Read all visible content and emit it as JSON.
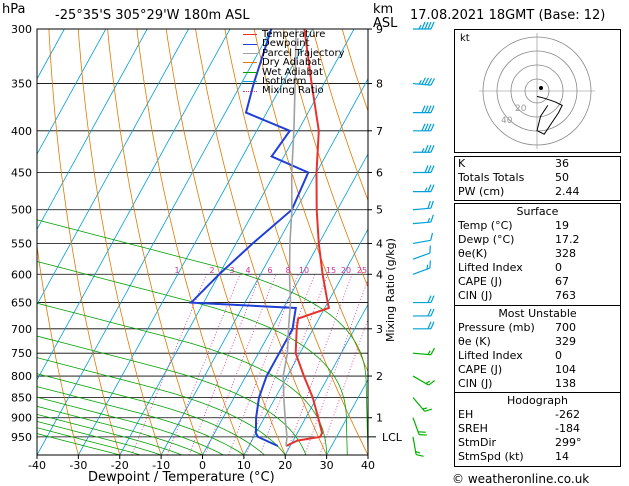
{
  "header": {
    "unit_hpa": "hPa",
    "location": "-25°35'S 305°29'W 180m ASL",
    "unit_km": "km",
    "unit_asl": "ASL",
    "datetime": "17.08.2021 18GMT (Base: 12)"
  },
  "legend": [
    {
      "label": "Temperature",
      "color": "#e8322e"
    },
    {
      "label": "Dewpoint",
      "color": "#1f3fd6"
    },
    {
      "label": "Parcel Trajectory",
      "color": "#a0a0a0"
    },
    {
      "label": "Dry Adiabat",
      "color": "#e07a00"
    },
    {
      "label": "Wet Adiabat",
      "color": "#00a000"
    },
    {
      "label": "Isotherm",
      "color": "#00a0d8"
    },
    {
      "label": "Mixing Ratio",
      "color": "#d0309a"
    }
  ],
  "colors": {
    "temperature": "#e8322e",
    "dewpoint": "#1f3fd6",
    "parcel": "#a0a0a0",
    "dry_adiabat": "#e07a00",
    "wet_adiabat": "#00a000",
    "isotherm": "#00a0d8",
    "mixing_ratio": "#d0309a",
    "wind_barb_upper": "#00a0d8",
    "wind_barb_lower": "#00b000"
  },
  "chart_data": {
    "type": "line",
    "xlabel": "Dewpoint / Temperature (°C)",
    "ylabel": "hPa",
    "right_axis_label": "Mixing Ratio (g/kg)",
    "xlim": [
      -40,
      40
    ],
    "ylim": [
      300,
      1000
    ],
    "y_scale": "log (skew-T)",
    "x_ticks": [
      -40,
      -30,
      -20,
      -10,
      0,
      10,
      20,
      30,
      40
    ],
    "pressure_ticks": [
      300,
      350,
      400,
      450,
      500,
      550,
      600,
      650,
      700,
      750,
      800,
      850,
      900,
      950
    ],
    "km_ticks": [
      {
        "p": 300,
        "label": "9"
      },
      {
        "p": 350,
        "label": "8"
      },
      {
        "p": 400,
        "label": "7"
      },
      {
        "p": 450,
        "label": "6"
      },
      {
        "p": 500,
        "label": "5"
      },
      {
        "p": 550,
        "label": "4"
      },
      {
        "p": 600,
        "label": "4"
      },
      {
        "p": 700,
        "label": "3"
      },
      {
        "p": 800,
        "label": "2"
      },
      {
        "p": 900,
        "label": "1"
      }
    ],
    "lcl_label": "LCL",
    "lcl_pressure": 950,
    "mixing_ratio_labels": [
      "1",
      "2",
      "3",
      "4",
      "6",
      "8",
      "10",
      "15",
      "20",
      "25"
    ],
    "series": [
      {
        "name": "Temperature",
        "points": [
          [
            975,
            19
          ],
          [
            960,
            21
          ],
          [
            950,
            26
          ],
          [
            940,
            26
          ],
          [
            900,
            23
          ],
          [
            850,
            19
          ],
          [
            800,
            14
          ],
          [
            750,
            9
          ],
          [
            700,
            6
          ],
          [
            680,
            5
          ],
          [
            660,
            11
          ],
          [
            650,
            10
          ],
          [
            600,
            5
          ],
          [
            550,
            0
          ],
          [
            500,
            -5
          ],
          [
            450,
            -10
          ],
          [
            400,
            -15
          ],
          [
            350,
            -23
          ],
          [
            300,
            -32
          ]
        ]
      },
      {
        "name": "Dewpoint",
        "points": [
          [
            975,
            17
          ],
          [
            950,
            11
          ],
          [
            940,
            10
          ],
          [
            900,
            8
          ],
          [
            850,
            6
          ],
          [
            800,
            5
          ],
          [
            750,
            5
          ],
          [
            700,
            5
          ],
          [
            680,
            4
          ],
          [
            660,
            3
          ],
          [
            650,
            -23
          ],
          [
            600,
            -20
          ],
          [
            550,
            -16
          ],
          [
            500,
            -11
          ],
          [
            450,
            -12
          ],
          [
            430,
            -23
          ],
          [
            400,
            -22
          ],
          [
            380,
            -35
          ],
          [
            350,
            -37
          ],
          [
            300,
            -40
          ]
        ]
      },
      {
        "name": "Parcel Trajectory",
        "points": [
          [
            975,
            19
          ],
          [
            950,
            18
          ],
          [
            900,
            15
          ],
          [
            850,
            12
          ],
          [
            800,
            9
          ],
          [
            750,
            7
          ],
          [
            700,
            4
          ],
          [
            650,
            1
          ],
          [
            600,
            -3
          ],
          [
            550,
            -7
          ],
          [
            500,
            -11
          ],
          [
            450,
            -16
          ],
          [
            400,
            -21
          ],
          [
            350,
            -27
          ],
          [
            300,
            -34
          ]
        ]
      }
    ],
    "wind_barbs": [
      {
        "p": 300,
        "dir": 270,
        "speed": 45
      },
      {
        "p": 350,
        "dir": 275,
        "speed": 45
      },
      {
        "p": 380,
        "dir": 270,
        "speed": 40
      },
      {
        "p": 400,
        "dir": 270,
        "speed": 40
      },
      {
        "p": 425,
        "dir": 270,
        "speed": 35
      },
      {
        "p": 450,
        "dir": 270,
        "speed": 30
      },
      {
        "p": 475,
        "dir": 270,
        "speed": 25
      },
      {
        "p": 500,
        "dir": 265,
        "speed": 20
      },
      {
        "p": 520,
        "dir": 265,
        "speed": 15
      },
      {
        "p": 550,
        "dir": 260,
        "speed": 10
      },
      {
        "p": 575,
        "dir": 250,
        "speed": 10
      },
      {
        "p": 600,
        "dir": 250,
        "speed": 15
      },
      {
        "p": 650,
        "dir": 270,
        "speed": 20
      },
      {
        "p": 675,
        "dir": 270,
        "speed": 20
      },
      {
        "p": 700,
        "dir": 270,
        "speed": 20
      },
      {
        "p": 750,
        "dir": 275,
        "speed": 15
      },
      {
        "p": 800,
        "dir": 300,
        "speed": 15
      },
      {
        "p": 850,
        "dir": 320,
        "speed": 15
      },
      {
        "p": 900,
        "dir": 340,
        "speed": 20
      },
      {
        "p": 950,
        "dir": 350,
        "speed": 15
      }
    ],
    "hodograph": {
      "label": "kt",
      "ring_labels": [
        "20",
        "40"
      ],
      "points": [
        [
          0,
          -3
        ],
        [
          4,
          -4
        ],
        [
          10,
          -6
        ],
        [
          14,
          -8
        ],
        [
          12,
          -12
        ],
        [
          8,
          -18
        ],
        [
          4,
          -24
        ],
        [
          0,
          -22
        ],
        [
          2,
          -14
        ],
        [
          6,
          -8
        ]
      ]
    }
  },
  "indices": {
    "basic": [
      {
        "label": "K",
        "value": "36"
      },
      {
        "label": "Totals Totals",
        "value": "50"
      },
      {
        "label": "PW (cm)",
        "value": "2.44"
      }
    ],
    "surface_title": "Surface",
    "surface": [
      {
        "label": "Temp (°C)",
        "value": "19"
      },
      {
        "label": "Dewp (°C)",
        "value": "17.2"
      },
      {
        "label": "θe(K)",
        "value": "328"
      },
      {
        "label": "Lifted Index",
        "value": "0"
      },
      {
        "label": "CAPE (J)",
        "value": "67"
      },
      {
        "label": "CIN (J)",
        "value": "763"
      }
    ],
    "unstable_title": "Most Unstable",
    "unstable": [
      {
        "label": "Pressure (mb)",
        "value": "700"
      },
      {
        "label": "θe (K)",
        "value": "329"
      },
      {
        "label": "Lifted Index",
        "value": "0"
      },
      {
        "label": "CAPE (J)",
        "value": "104"
      },
      {
        "label": "CIN (J)",
        "value": "138"
      }
    ],
    "hodo_title": "Hodograph",
    "hodo": [
      {
        "label": "EH",
        "value": "-262"
      },
      {
        "label": "SREH",
        "value": "-184"
      },
      {
        "label": "StmDir",
        "value": "299°"
      },
      {
        "label": "StmSpd (kt)",
        "value": "14"
      }
    ]
  },
  "footer": {
    "credit": "© weatheronline.co.uk"
  }
}
